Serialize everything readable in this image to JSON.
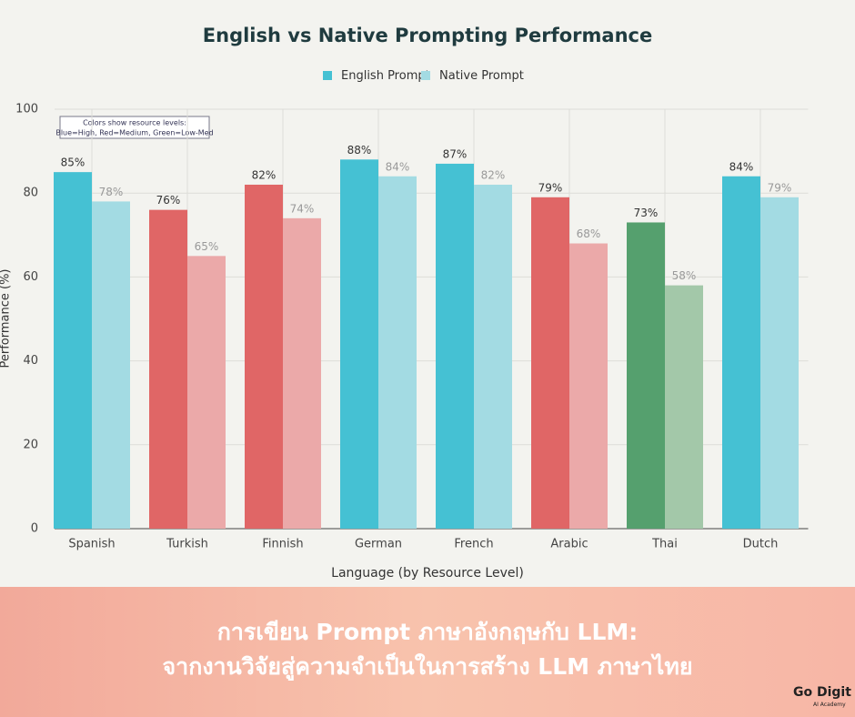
{
  "chart_data": {
    "type": "bar",
    "title": "English vs Native Prompting Performance",
    "x_label": "Language (by Resource Level)",
    "y_label": "Performance (%)",
    "annotation": [
      "Colors show resource levels:",
      "Blue=High, Red=Medium, Green=Low-Med"
    ],
    "categories": [
      "Spanish",
      "Turkish",
      "Finnish",
      "German",
      "French",
      "Arabic",
      "Thai",
      "Dutch"
    ],
    "series": [
      {
        "name": "English Prompt",
        "color": "#45c1d3",
        "colors": [
          "#45c1d3",
          "#e06666",
          "#e06666",
          "#45c1d3",
          "#45c1d3",
          "#e06666",
          "#55a06e",
          "#45c1d3"
        ],
        "values": [
          85,
          76,
          82,
          88,
          87,
          79,
          73,
          84
        ],
        "value_labels": [
          "85%",
          "76%",
          "82%",
          "88%",
          "87%",
          "79%",
          "73%",
          "84%"
        ]
      },
      {
        "name": "Native Prompt",
        "color": "#a3dbe3",
        "colors": [
          "#a3dbe3",
          "#eba9a9",
          "#eba9a9",
          "#a3dbe3",
          "#a3dbe3",
          "#eba9a9",
          "#a3c8a9",
          "#a3dbe3"
        ],
        "values": [
          78,
          65,
          74,
          84,
          82,
          68,
          58,
          79
        ],
        "value_labels": [
          "78%",
          "65%",
          "74%",
          "84%",
          "82%",
          "68%",
          "58%",
          "79%"
        ]
      }
    ],
    "ylim": [
      0,
      100
    ],
    "yticks": [
      0,
      20,
      40,
      60,
      80,
      100
    ],
    "grid": true,
    "legend": "top"
  },
  "banner": {
    "lines": [
      "การเขียน Prompt ภาษาอังกฤษกับ LLM:",
      "จากงานวิจัยสู่ความจำเป็นในการสร้าง LLM ภาษาไทย"
    ],
    "logo": "Go Digit",
    "logo_sub": "AI Academy"
  }
}
